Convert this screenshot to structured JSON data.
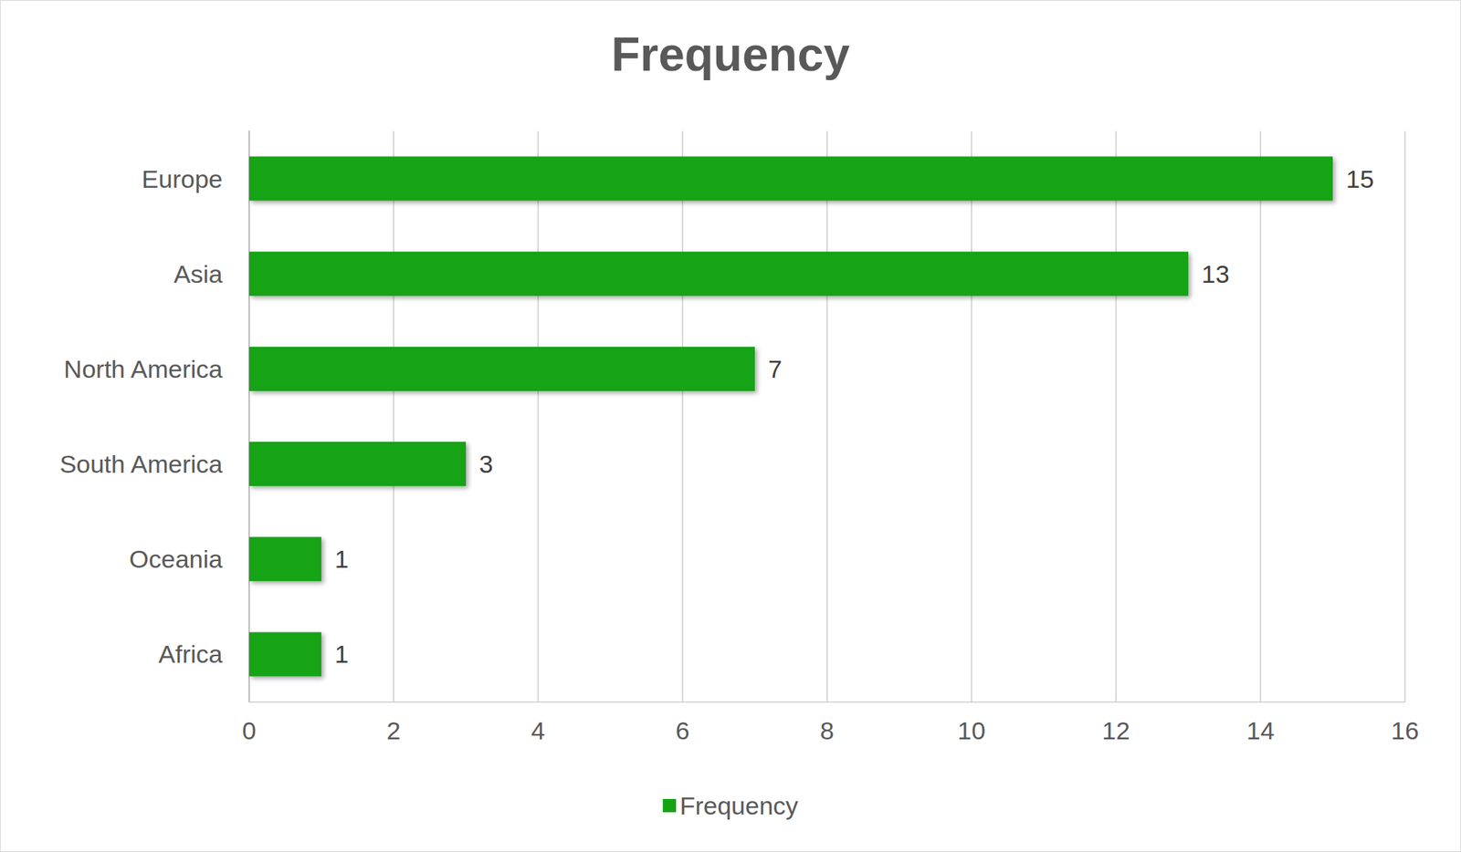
{
  "chart_data": {
    "type": "bar",
    "title": "Frequency",
    "orientation": "horizontal",
    "categories": [
      "Europe",
      "Asia",
      "North America",
      "South America",
      "Oceania",
      "Africa"
    ],
    "series": [
      {
        "name": "Frequency",
        "color": "#13a313",
        "values": [
          15,
          13,
          7,
          3,
          1,
          1
        ]
      }
    ],
    "xlim": [
      0,
      16
    ],
    "xticks": [
      0,
      2,
      4,
      6,
      8,
      10,
      12,
      14,
      16
    ],
    "grid": true,
    "data_labels": true,
    "legend": "bottom"
  }
}
